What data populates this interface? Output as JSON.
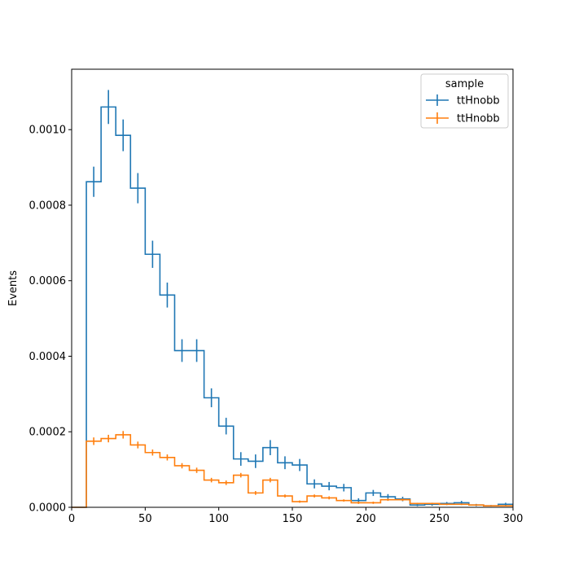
{
  "chart_data": {
    "type": "histogram-step",
    "title": "",
    "xlabel": "",
    "ylabel": "Events",
    "xlim": [
      0,
      300
    ],
    "ylim": [
      0,
      0.00116
    ],
    "xticks": [
      0,
      50,
      100,
      150,
      200,
      250,
      300
    ],
    "yticks": [
      0.0,
      0.0002,
      0.0004,
      0.0006,
      0.0008,
      0.001
    ],
    "ytick_labels": [
      "0.0000",
      "0.0002",
      "0.0004",
      "0.0006",
      "0.0008",
      "0.0010"
    ],
    "grid": false,
    "legend": {
      "title": "sample",
      "placement": "top-right"
    },
    "bin_edges": [
      0,
      10,
      20,
      30,
      40,
      50,
      60,
      70,
      80,
      90,
      100,
      110,
      120,
      130,
      140,
      150,
      160,
      170,
      180,
      190,
      200,
      210,
      220,
      230,
      240,
      250,
      260,
      270,
      280,
      290,
      300
    ],
    "series": [
      {
        "name": "ttHnobb",
        "color": "#1f77b4",
        "values": [
          0.0,
          0.000862,
          0.00106,
          0.000985,
          0.000845,
          0.00067,
          0.000562,
          0.000415,
          0.000415,
          0.00029,
          0.000215,
          0.000128,
          0.000122,
          0.000158,
          0.000118,
          0.000112,
          6.2e-05,
          5.6e-05,
          5.2e-05,
          1.8e-05,
          3.8e-05,
          2.8e-05,
          2.2e-05,
          6e-06,
          8e-06,
          1e-05,
          1.2e-05,
          6e-06,
          4e-06,
          8e-06
        ],
        "errors": [
          0.0,
          4e-05,
          4.5e-05,
          4.2e-05,
          4e-05,
          3.6e-05,
          3.3e-05,
          3e-05,
          3e-05,
          2.5e-05,
          2.2e-05,
          1.8e-05,
          1.8e-05,
          2e-05,
          1.7e-05,
          1.6e-05,
          1.2e-05,
          1.1e-05,
          1e-05,
          6e-06,
          8e-06,
          7e-06,
          6e-06,
          3e-06,
          4e-06,
          4e-06,
          5e-06,
          3e-06,
          2e-06,
          4e-06
        ]
      },
      {
        "name": "ttHnobb",
        "color": "#ff7f0e",
        "values": [
          0.0,
          0.000175,
          0.000182,
          0.000192,
          0.000165,
          0.000145,
          0.000132,
          0.00011,
          9.8e-05,
          7.2e-05,
          6.5e-05,
          8.5e-05,
          3.8e-05,
          7.2e-05,
          3e-05,
          1.5e-05,
          3e-05,
          2.5e-05,
          1.8e-05,
          1.2e-05,
          1.2e-05,
          2e-05,
          2e-05,
          1e-05,
          1e-05,
          8e-06,
          8e-06,
          6e-06,
          4e-06,
          4e-06
        ],
        "errors": [
          0.0,
          1e-05,
          1e-05,
          1e-05,
          9e-06,
          8e-06,
          8e-06,
          7e-06,
          7e-06,
          6e-06,
          6e-06,
          6e-06,
          5e-06,
          6e-06,
          4e-06,
          3e-06,
          4e-06,
          4e-06,
          3e-06,
          3e-06,
          3e-06,
          3e-06,
          3e-06,
          2e-06,
          2e-06,
          2e-06,
          2e-06,
          2e-06,
          1e-06,
          1e-06
        ]
      }
    ]
  }
}
